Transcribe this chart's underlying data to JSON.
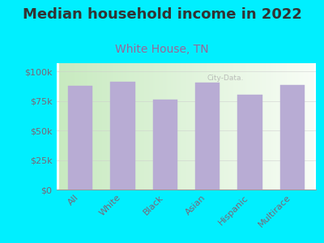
{
  "title": "Median household income in 2022",
  "subtitle": "White House, TN",
  "categories": [
    "All",
    "White",
    "Black",
    "Asian",
    "Hispanic",
    "Multirace"
  ],
  "values": [
    88000,
    91500,
    76000,
    90500,
    80500,
    88500
  ],
  "bar_color": "#b8acd4",
  "bar_edge_color": "#b8acd4",
  "background_color": "#00efff",
  "plot_bg_gradient_left": "#d8eeda",
  "plot_bg_gradient_right": "#f5f9f5",
  "title_color": "#333333",
  "subtitle_color": "#996699",
  "tick_label_color": "#7a6677",
  "ytick_labels": [
    "$0",
    "$25k",
    "$50k",
    "$75k",
    "$100k"
  ],
  "ytick_values": [
    0,
    25000,
    50000,
    75000,
    100000
  ],
  "ylim": [
    0,
    107000
  ],
  "watermark": "City-Data.",
  "title_fontsize": 13,
  "subtitle_fontsize": 10,
  "tick_fontsize": 8
}
